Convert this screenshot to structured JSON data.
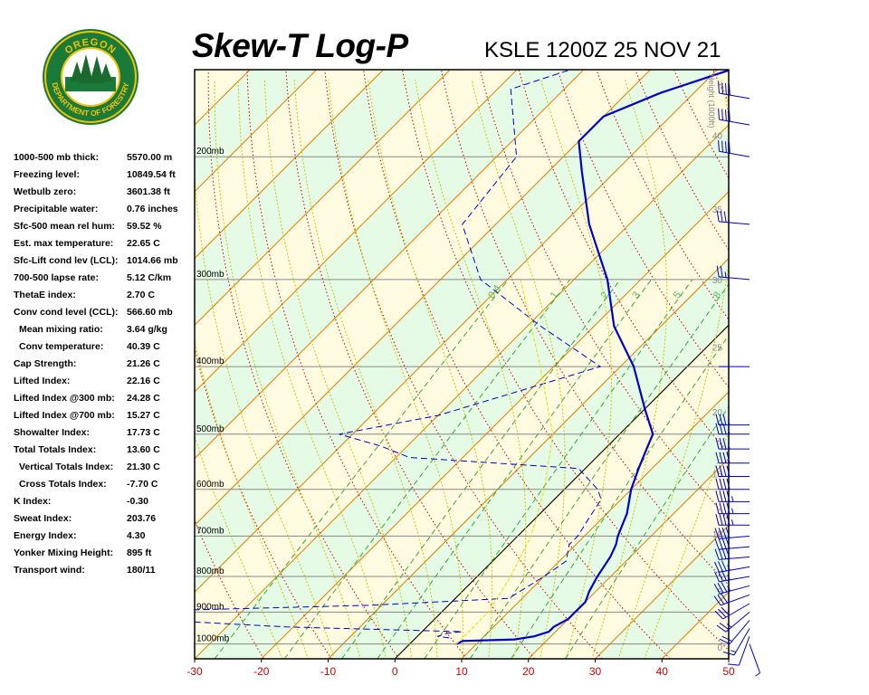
{
  "header": {
    "title": "Skew-T Log-P",
    "station": "KSLE 1200Z 25 NOV 21"
  },
  "logo": {
    "top_text": "OREGON",
    "bottom_text": "DEPARTMENT OF FORESTRY"
  },
  "indices": [
    {
      "label": "1000-500 mb thick:",
      "value": "5570.00 m"
    },
    {
      "label": "Freezing level:",
      "value": "10849.54 ft"
    },
    {
      "label": "Wetbulb zero:",
      "value": "3601.38 ft"
    },
    {
      "label": "Precipitable water:",
      "value": "0.76 inches"
    },
    {
      "label": "Sfc-500 mean rel hum:",
      "value": "59.52 %"
    },
    {
      "label": "Est. max temperature:",
      "value": "22.65 C"
    },
    {
      "label": "Sfc-Lift cond lev (LCL):",
      "value": "1014.66 mb"
    },
    {
      "label": "700-500 lapse rate:",
      "value": "5.12 C/km"
    },
    {
      "label": "ThetaE index:",
      "value": "2.70 C"
    },
    {
      "label": "Conv cond level (CCL):",
      "value": "566.60 mb"
    },
    {
      "label": "Mean mixing ratio:",
      "value": "3.64 g/kg",
      "indent": true
    },
    {
      "label": "Conv temperature:",
      "value": "40.39 C",
      "indent": true
    },
    {
      "label": "Cap Strength:",
      "value": "21.26 C"
    },
    {
      "label": "Lifted Index:",
      "value": "22.16 C"
    },
    {
      "label": "Lifted Index @300 mb:",
      "value": "24.28 C"
    },
    {
      "label": "Lifted Index @700 mb:",
      "value": "15.27 C"
    },
    {
      "label": "Showalter Index:",
      "value": "17.73 C"
    },
    {
      "label": "Total Totals Index:",
      "value": "13.60 C"
    },
    {
      "label": "Vertical Totals Index:",
      "value": "21.30 C",
      "indent": true
    },
    {
      "label": "Cross Totals Index:",
      "value": "-7.70 C",
      "indent": true
    },
    {
      "label": "K Index:",
      "value": "-0.30"
    },
    {
      "label": "Sweat Index:",
      "value": "203.76"
    },
    {
      "label": "Energy Index:",
      "value": "4.30"
    },
    {
      "label": "Yonker Mixing Height:",
      "value": "895 ft"
    },
    {
      "label": "Transport wind:",
      "value": "180/11"
    }
  ],
  "chart_data": {
    "type": "skew-t log-p",
    "x_axis": {
      "label": "",
      "unit": "C",
      "range": [
        -30,
        50
      ],
      "ticks": [
        -30,
        -20,
        -10,
        0,
        10,
        20,
        30,
        40,
        50
      ],
      "tick_color": "#cc0000"
    },
    "y_axis": {
      "label": "",
      "scale": "log-pressure",
      "range_mb": [
        1050,
        150
      ],
      "ticks": [
        "200mb",
        "300mb",
        "400mb",
        "500mb",
        "600mb",
        "700mb",
        "800mb",
        "900mb",
        "1000mb"
      ],
      "tick_values": [
        200,
        300,
        400,
        500,
        600,
        700,
        800,
        900,
        1000
      ]
    },
    "height_axis": {
      "label": "Height (1000ft)",
      "ticks": [
        0,
        5,
        10,
        15,
        20,
        25,
        30,
        35,
        40,
        45,
        50
      ]
    },
    "mixing_ratio_labels": [
      "0.4",
      "1",
      "2",
      "3",
      "5",
      "8"
    ],
    "colors": {
      "background": "#e6fbe6",
      "isobar": "#888888",
      "isotherm": "#e08000",
      "dry_adiabat": "#cc0000",
      "moist_adiabat": "#c8c800",
      "mixing_ratio": "#33aa33",
      "temperature": "#0000cc",
      "dewpoint": "#0000cc",
      "parcel": "#e0e000",
      "freezing_line": "#000000",
      "wind_barb": "#0000cc"
    },
    "series": [
      {
        "type": "temperature",
        "points": [
          {
            "p": 1000,
            "t": 7
          },
          {
            "p": 990,
            "t": 7.5
          },
          {
            "p": 985,
            "t": 15
          },
          {
            "p": 975,
            "t": 17.5
          },
          {
            "p": 960,
            "t": 19
          },
          {
            "p": 945,
            "t": 19
          },
          {
            "p": 920,
            "t": 20
          },
          {
            "p": 900,
            "t": 20
          },
          {
            "p": 870,
            "t": 20
          },
          {
            "p": 840,
            "t": 19
          },
          {
            "p": 800,
            "t": 18
          },
          {
            "p": 750,
            "t": 17
          },
          {
            "p": 720,
            "t": 16
          },
          {
            "p": 700,
            "t": 15
          },
          {
            "p": 650,
            "t": 13
          },
          {
            "p": 600,
            "t": 10
          },
          {
            "p": 560,
            "t": 8
          },
          {
            "p": 520,
            "t": 6
          },
          {
            "p": 500,
            "t": 5
          },
          {
            "p": 460,
            "t": 0
          },
          {
            "p": 400,
            "t": -8
          },
          {
            "p": 350,
            "t": -17
          },
          {
            "p": 300,
            "t": -25
          },
          {
            "p": 250,
            "t": -36
          },
          {
            "p": 210,
            "t": -45
          },
          {
            "p": 190,
            "t": -50
          },
          {
            "p": 175,
            "t": -50
          },
          {
            "p": 162,
            "t": -45
          },
          {
            "p": 150,
            "t": -38
          }
        ]
      },
      {
        "type": "dewpoint",
        "points": [
          {
            "p": 980,
            "t": 5
          },
          {
            "p": 975,
            "t": 3
          },
          {
            "p": 965,
            "t": 4
          },
          {
            "p": 960,
            "t": 6
          },
          {
            "p": 945,
            "t": -21
          },
          {
            "p": 920,
            "t": -45
          },
          {
            "p": 900,
            "t": -50
          },
          {
            "p": 880,
            "t": -12
          },
          {
            "p": 860,
            "t": 8
          },
          {
            "p": 800,
            "t": 10
          },
          {
            "p": 760,
            "t": 11
          },
          {
            "p": 720,
            "t": 9
          },
          {
            "p": 700,
            "t": 9
          },
          {
            "p": 660,
            "t": 8
          },
          {
            "p": 620,
            "t": 7
          },
          {
            "p": 600,
            "t": 5
          },
          {
            "p": 560,
            "t": -1
          },
          {
            "p": 540,
            "t": -28
          },
          {
            "p": 520,
            "t": -34
          },
          {
            "p": 500,
            "t": -42
          },
          {
            "p": 470,
            "t": -30
          },
          {
            "p": 400,
            "t": -13
          },
          {
            "p": 350,
            "t": -28
          },
          {
            "p": 300,
            "t": -44
          },
          {
            "p": 250,
            "t": -55
          },
          {
            "p": 200,
            "t": -57
          },
          {
            "p": 160,
            "t": -68
          },
          {
            "p": 150,
            "t": -62
          }
        ]
      },
      {
        "type": "parcel",
        "points": [
          {
            "p": 1000,
            "t": 7
          },
          {
            "p": 900,
            "t": 7
          },
          {
            "p": 800,
            "t": 5
          },
          {
            "p": 700,
            "t": 2
          },
          {
            "p": 600,
            "t": -3
          },
          {
            "p": 500,
            "t": -10
          },
          {
            "p": 400,
            "t": -22
          },
          {
            "p": 300,
            "t": -38
          }
        ]
      }
    ],
    "winds": [
      {
        "p": 1000,
        "dir": 160,
        "kt": 5
      },
      {
        "p": 975,
        "dir": 200,
        "kt": 10
      },
      {
        "p": 950,
        "dir": 210,
        "kt": 15
      },
      {
        "p": 925,
        "dir": 220,
        "kt": 20
      },
      {
        "p": 900,
        "dir": 230,
        "kt": 25
      },
      {
        "p": 875,
        "dir": 240,
        "kt": 30
      },
      {
        "p": 850,
        "dir": 250,
        "kt": 30
      },
      {
        "p": 825,
        "dir": 255,
        "kt": 35
      },
      {
        "p": 800,
        "dir": 260,
        "kt": 35
      },
      {
        "p": 775,
        "dir": 260,
        "kt": 35
      },
      {
        "p": 750,
        "dir": 265,
        "kt": 40
      },
      {
        "p": 725,
        "dir": 265,
        "kt": 40
      },
      {
        "p": 700,
        "dir": 265,
        "kt": 40
      },
      {
        "p": 675,
        "dir": 270,
        "kt": 45
      },
      {
        "p": 650,
        "dir": 270,
        "kt": 45
      },
      {
        "p": 625,
        "dir": 270,
        "kt": 45
      },
      {
        "p": 600,
        "dir": 270,
        "kt": 40
      },
      {
        "p": 575,
        "dir": 270,
        "kt": 40
      },
      {
        "p": 550,
        "dir": 270,
        "kt": 40
      },
      {
        "p": 525,
        "dir": 270,
        "kt": 35
      },
      {
        "p": 500,
        "dir": 270,
        "kt": 35
      },
      {
        "p": 485,
        "dir": 270,
        "kt": 35
      },
      {
        "p": 400,
        "dir": 270,
        "kt": 0
      },
      {
        "p": 300,
        "dir": 275,
        "kt": 25
      },
      {
        "p": 250,
        "dir": 275,
        "kt": 30
      },
      {
        "p": 200,
        "dir": 280,
        "kt": 40
      },
      {
        "p": 180,
        "dir": 280,
        "kt": 40
      },
      {
        "p": 165,
        "dir": 280,
        "kt": 40
      },
      {
        "p": 150,
        "dir": 285,
        "kt": 30
      }
    ]
  }
}
